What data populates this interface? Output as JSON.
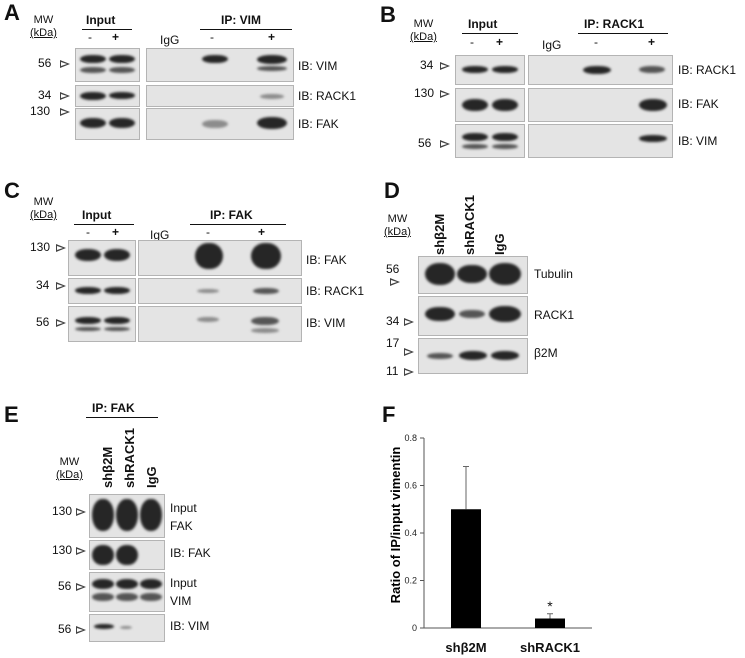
{
  "mw": {
    "line1": "MW",
    "line2": "(kDa)"
  },
  "panelA": {
    "letter": "A",
    "input_header": "Input",
    "ip_header": "IP: VIM",
    "igg": "IgG",
    "minus": "-",
    "plus": "+",
    "markers": [
      "56",
      "34",
      "130"
    ],
    "blots": [
      "IB: VIM",
      "IB: RACK1",
      "IB: FAK"
    ]
  },
  "panelB": {
    "letter": "B",
    "input_header": "Input",
    "ip_header": "IP: RACK1",
    "igg": "IgG",
    "minus": "-",
    "plus": "+",
    "markers": [
      "34",
      "130",
      "56"
    ],
    "blots": [
      "IB: RACK1",
      "IB: FAK",
      "IB: VIM"
    ]
  },
  "panelC": {
    "letter": "C",
    "input_header": "Input",
    "ip_header": "IP: FAK",
    "igg": "IgG",
    "minus": "-",
    "plus": "+",
    "markers": [
      "130",
      "34",
      "56"
    ],
    "blots": [
      "IB: FAK",
      "IB: RACK1",
      "IB: VIM"
    ]
  },
  "panelD": {
    "letter": "D",
    "lanes": [
      "shβ2M",
      "shRACK1",
      "IgG"
    ],
    "markers": [
      "56",
      "34",
      "17",
      "11"
    ],
    "blots": [
      "Tubulin",
      "RACK1",
      "β2M"
    ]
  },
  "panelE": {
    "letter": "E",
    "ip_header": "IP: FAK",
    "lanes": [
      "shβ2M",
      "shRACK1",
      "IgG"
    ],
    "markers": [
      "130",
      "130",
      "56",
      "56"
    ],
    "blots": [
      {
        "line1": "Input",
        "line2": "FAK"
      },
      {
        "line1": "IB: FAK",
        "line2": ""
      },
      {
        "line1": "Input",
        "line2": "VIM"
      },
      {
        "line1": "IB: VIM",
        "line2": ""
      }
    ]
  },
  "panelF": {
    "letter": "F"
  },
  "chart_data": {
    "type": "bar",
    "categories": [
      "shβ2M",
      "shRACK1"
    ],
    "values": [
      0.5,
      0.04
    ],
    "errors": [
      0.18,
      0.02
    ],
    "significance": [
      "",
      "*"
    ],
    "ylabel": "Ratio of IP/input vimentin",
    "xlabel": "",
    "ylim": [
      0,
      0.8
    ],
    "yticks": [
      "0",
      "0.2",
      "0.4",
      "0.6",
      "0.8"
    ],
    "bar_color": "#000000"
  }
}
